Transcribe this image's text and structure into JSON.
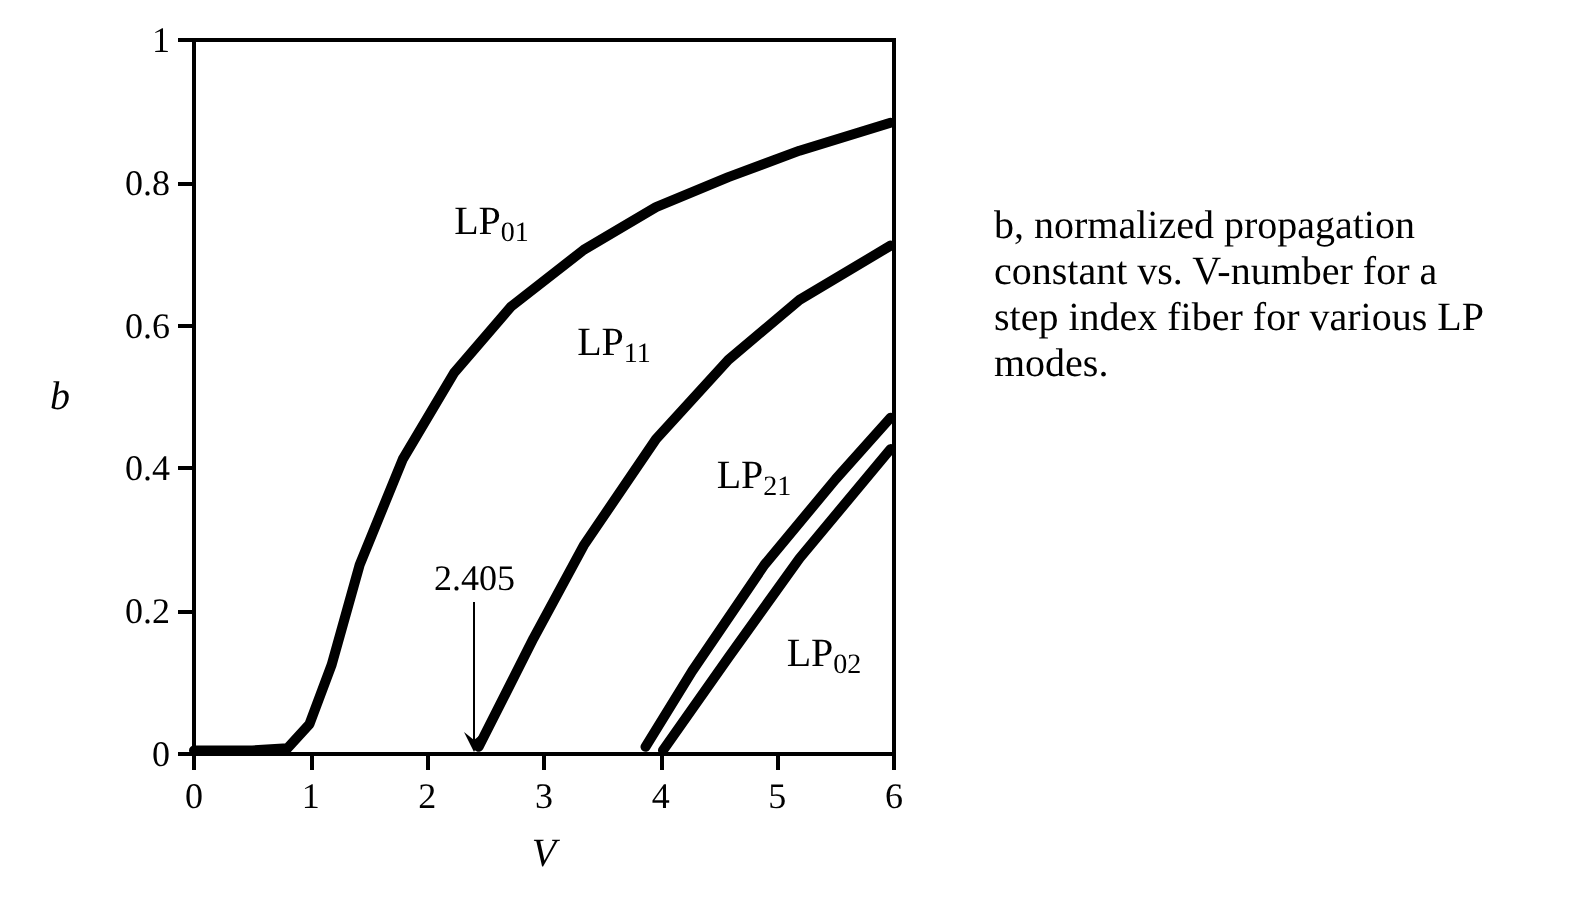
{
  "chart_data": {
    "type": "line",
    "xlabel": "V",
    "ylabel": "b",
    "xlim": [
      0,
      6
    ],
    "xticks": [
      0,
      1,
      2,
      3,
      4,
      5,
      6
    ],
    "ylim": [
      0,
      1
    ],
    "yticks": [
      0,
      0.2,
      0.4,
      0.6,
      0.8,
      1
    ],
    "grid": false,
    "legend": false,
    "marker": "none",
    "line_style": "solid",
    "annotations": [
      {
        "text": "2.405",
        "x": 2.405,
        "y": 0
      },
      "b, normalized propagation constant vs. V-number for a step index fiber for various LP modes."
    ],
    "series": [
      {
        "name": "LP$_{01}$",
        "color": "#000000",
        "x": [
          0,
          0.5,
          0.8,
          0.99,
          1.18,
          1.42,
          1.79,
          2.23,
          2.72,
          3.34,
          3.96,
          4.58,
          5.19,
          5.97
        ],
        "values": [
          0.005,
          0.005,
          0.008,
          0.042,
          0.125,
          0.265,
          0.413,
          0.534,
          0.627,
          0.706,
          0.766,
          0.808,
          0.845,
          0.884
        ]
      },
      {
        "name": "LP$_{11}$",
        "color": "#000000",
        "x": [
          2.44,
          2.91,
          3.34,
          3.96,
          4.58,
          5.19,
          5.97
        ],
        "values": [
          0.01,
          0.162,
          0.292,
          0.441,
          0.552,
          0.636,
          0.712
        ]
      },
      {
        "name": "LP$_{21}$",
        "color": "#000000",
        "x": [
          3.87,
          4.27,
          4.89,
          5.5,
          5.97
        ],
        "values": [
          0.01,
          0.116,
          0.265,
          0.385,
          0.471
        ]
      },
      {
        "name": "LP$_{02}$",
        "color": "#000000",
        "x": [
          4.02,
          4.58,
          5.19,
          5.97
        ],
        "values": [
          0.005,
          0.135,
          0.274,
          0.427
        ]
      }
    ]
  }
}
